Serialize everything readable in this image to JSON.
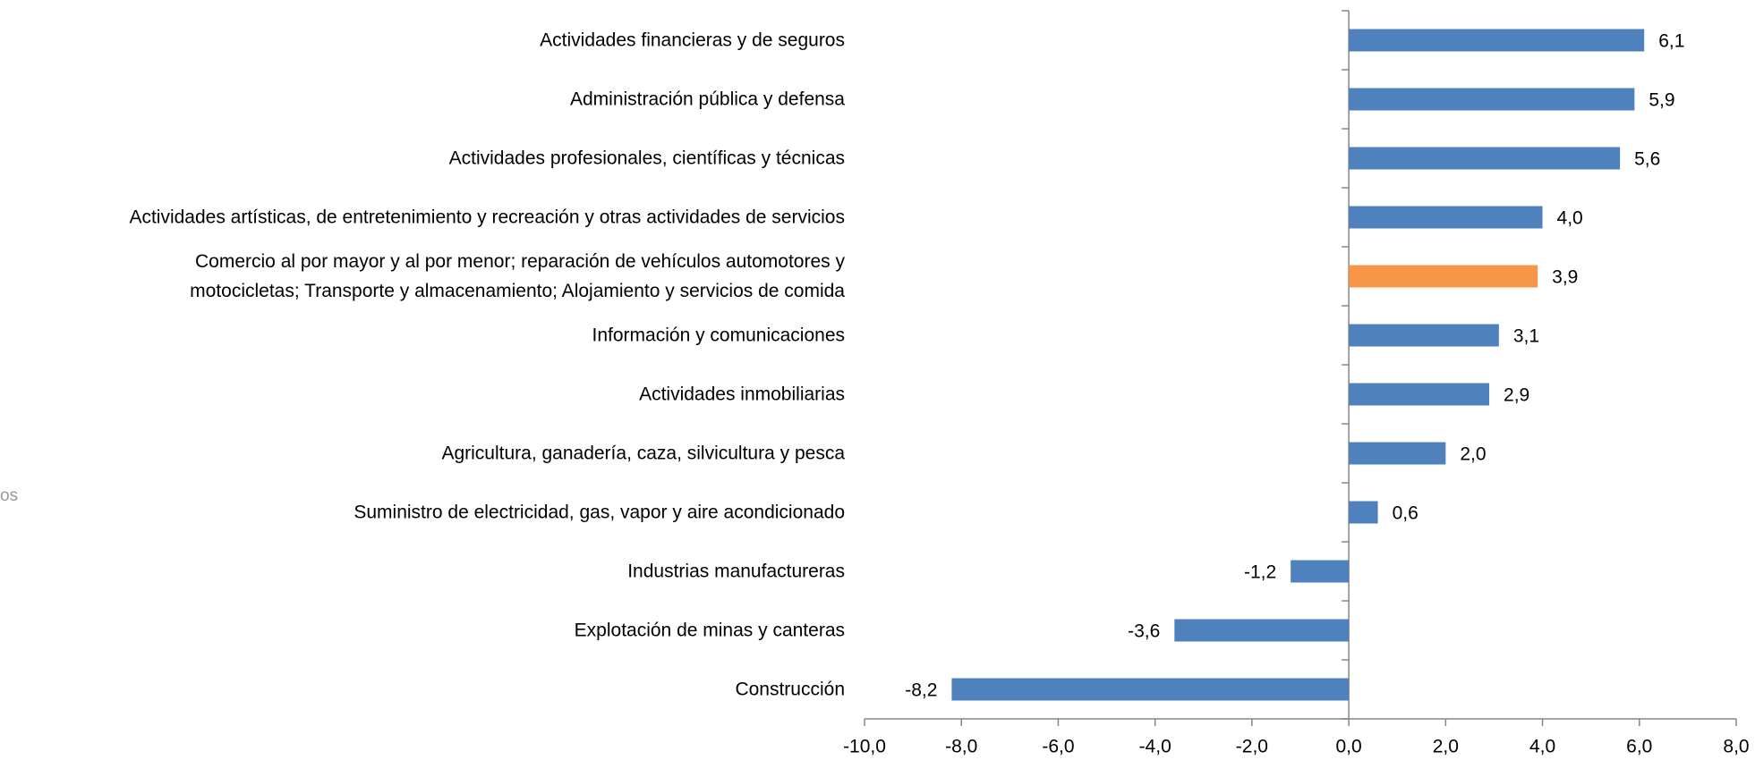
{
  "chart_data": {
    "type": "bar",
    "orientation": "horizontal",
    "fragment": "os",
    "categories": [
      "Actividades financieras y de seguros",
      "Administración pública y defensa",
      "Actividades profesionales, científicas y técnicas",
      "Actividades artísticas, de entretenimiento y recreación y otras actividades de servicios",
      "Comercio al por mayor y al por menor; reparación de vehículos automotores y\nmotocicletas; Transporte y almacenamiento; Alojamiento y servicios de comida",
      "Información y comunicaciones",
      "Actividades inmobiliarias",
      "Agricultura, ganadería, caza, silvicultura y pesca",
      "Suministro de electricidad, gas, vapor y aire acondicionado",
      "Industrias manufactureras",
      "Explotación de minas y canteras",
      "Construcción"
    ],
    "values": [
      6.1,
      5.9,
      5.6,
      4.0,
      3.9,
      3.1,
      2.9,
      2.0,
      0.6,
      -1.2,
      -3.6,
      -8.2
    ],
    "value_labels": [
      "6,1",
      "5,9",
      "5,6",
      "4,0",
      "3,9",
      "3,1",
      "2,9",
      "2,0",
      "0,6",
      "-1,2",
      "-3,6",
      "-8,2"
    ],
    "colors": [
      "#4f81bd",
      "#4f81bd",
      "#4f81bd",
      "#4f81bd",
      "#f79646",
      "#4f81bd",
      "#4f81bd",
      "#4f81bd",
      "#4f81bd",
      "#4f81bd",
      "#4f81bd",
      "#4f81bd"
    ],
    "xlim": [
      -10,
      8
    ],
    "xticks": [
      {
        "value": -10,
        "label": "-10,0"
      },
      {
        "value": -8,
        "label": "-8,0"
      },
      {
        "value": -6,
        "label": "-6,0"
      },
      {
        "value": -4,
        "label": "-4,0"
      },
      {
        "value": -2,
        "label": "-2,0"
      },
      {
        "value": 0,
        "label": "0,0"
      },
      {
        "value": 2,
        "label": "2,0"
      },
      {
        "value": 4,
        "label": "4,0"
      },
      {
        "value": 6,
        "label": "6,0"
      },
      {
        "value": 8,
        "label": "8,0"
      }
    ],
    "grid": false
  }
}
